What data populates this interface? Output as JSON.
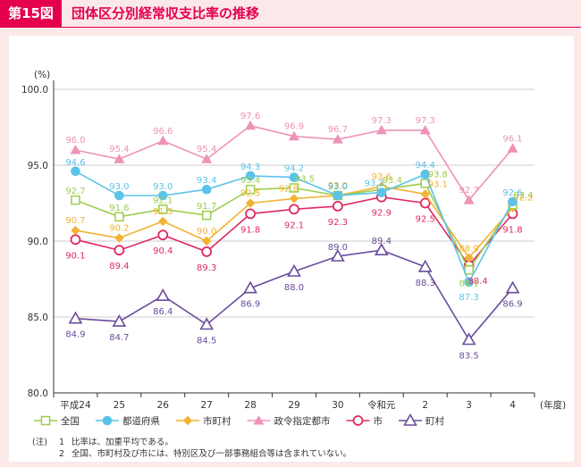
{
  "figure": {
    "label": "第15図",
    "title": "団体区分別経常収支比率の推移"
  },
  "colors": {
    "header": "#e5004f",
    "all": "#9ccd4d",
    "prefecture": "#5bc3ea",
    "municipality": "#f2b233",
    "designated_city": "#ee92b8",
    "city": "#df2a60",
    "town": "#6a4c9c"
  },
  "chart_data": {
    "type": "line",
    "title": "団体区分別経常収支比率の推移",
    "ylabel": "(%)",
    "xlabel": "(年度)",
    "ylim": [
      80.0,
      100.0
    ],
    "yticks": [
      "100.0",
      "95.0",
      "90.0",
      "85.0",
      "80.0"
    ],
    "categories": [
      "平成24",
      "25",
      "26",
      "27",
      "28",
      "29",
      "30",
      "令和元",
      "2",
      "3",
      "4"
    ],
    "series": [
      {
        "key": "designated_city",
        "name": "政令指定都市",
        "marker": "triangle",
        "values": [
          96.0,
          95.4,
          96.6,
          95.4,
          97.6,
          96.9,
          96.7,
          97.3,
          97.3,
          92.7,
          96.1
        ],
        "labels": [
          "96.0",
          "95.4",
          "96.6",
          "95.4",
          "97.6",
          "96.9",
          "96.7",
          "97.3",
          "97.3",
          "92.7",
          "96.1"
        ]
      },
      {
        "key": "prefecture",
        "name": "都道府県",
        "marker": "circle",
        "values": [
          94.6,
          93.0,
          93.0,
          93.4,
          94.3,
          94.2,
          93.0,
          93.2,
          94.4,
          87.3,
          92.6
        ],
        "labels": [
          "94.6",
          "93.0",
          "93.0",
          "93.4",
          "94.3",
          "94.2",
          "93.0",
          "93.2",
          "94.4",
          "87.3",
          "92.6"
        ]
      },
      {
        "key": "all",
        "name": "全国",
        "marker": "square",
        "values": [
          92.7,
          91.6,
          92.1,
          91.7,
          93.4,
          93.5,
          93.0,
          93.4,
          93.8,
          88.1,
          92.4
        ],
        "labels": [
          "92.7",
          "91.6",
          "92.1",
          "91.7",
          "93.4",
          "93.5",
          "93.0",
          "93.4",
          "93.8",
          "88.1",
          "92.4"
        ]
      },
      {
        "key": "municipality",
        "name": "市町村",
        "marker": "diamond",
        "values": [
          90.7,
          90.2,
          91.3,
          90.0,
          92.5,
          92.8,
          93.0,
          93.6,
          93.1,
          88.9,
          92.2
        ],
        "labels": [
          "90.7",
          "90.2",
          "91.3",
          "90.0",
          "92.5",
          "92.8",
          "93.0",
          "93.6",
          "93.1",
          "88.9",
          "92.2"
        ]
      },
      {
        "key": "city",
        "name": "市",
        "marker": "circle-open",
        "values": [
          90.1,
          89.4,
          90.4,
          89.3,
          91.8,
          92.1,
          92.3,
          92.9,
          92.5,
          88.4,
          91.8
        ],
        "labels": [
          "90.1",
          "89.4",
          "90.4",
          "89.3",
          "91.8",
          "92.1",
          "92.3",
          "92.9",
          "92.5",
          "88.4",
          "91.8"
        ]
      },
      {
        "key": "town",
        "name": "町村",
        "marker": "triangle-open",
        "values": [
          84.9,
          84.7,
          86.4,
          84.5,
          86.9,
          88.0,
          89.0,
          89.4,
          88.3,
          83.5,
          86.9
        ],
        "labels": [
          "84.9",
          "84.7",
          "86.4",
          "84.5",
          "86.9",
          "88.0",
          "89.0",
          "89.4",
          "88.3",
          "83.5",
          "86.9"
        ]
      }
    ],
    "legend_order": [
      "all",
      "prefecture",
      "municipality",
      "designated_city",
      "city",
      "town"
    ],
    "legend_position": "bottom-left"
  },
  "notes": {
    "label": "(注)",
    "items": [
      {
        "num": "1",
        "text": "比率は、加重平均である。"
      },
      {
        "num": "2",
        "text": "全国、市町村及び市には、特別区及び一部事務組合等は含まれていない。"
      }
    ]
  }
}
